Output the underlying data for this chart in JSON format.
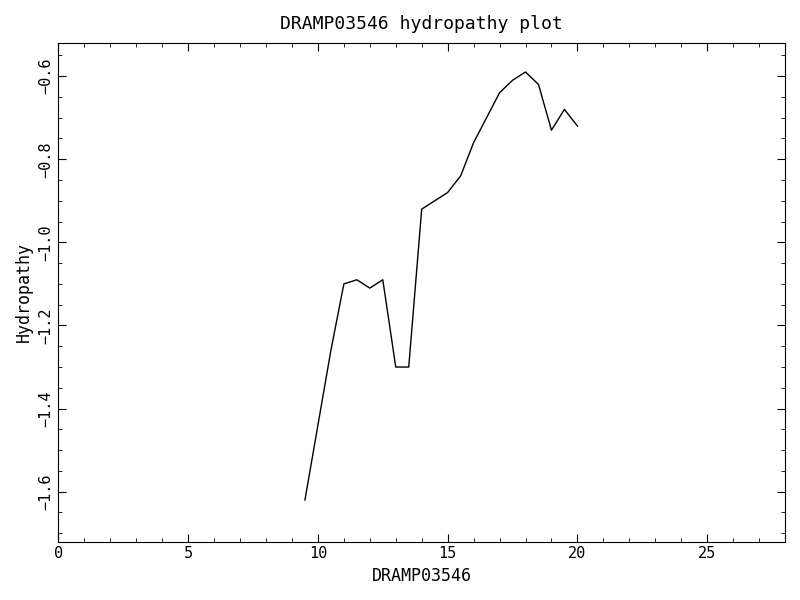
{
  "title": "DRAMP03546 hydropathy plot",
  "xlabel": "DRAMP03546",
  "ylabel": "Hydropathy",
  "xlim": [
    0,
    28
  ],
  "ylim": [
    -1.72,
    -0.52
  ],
  "x_ticks": [
    0,
    5,
    10,
    15,
    20,
    25
  ],
  "y_ticks": [
    -1.6,
    -1.4,
    -1.2,
    -1.0,
    -0.8,
    -0.6
  ],
  "x": [
    9.5,
    10.0,
    10.5,
    11.0,
    11.5,
    12.0,
    12.5,
    13.0,
    13.5,
    14.0,
    14.5,
    15.0,
    15.5,
    16.0,
    16.5,
    17.0,
    17.5,
    18.0,
    18.5,
    19.0,
    19.5,
    20.0
  ],
  "y": [
    -1.62,
    -1.44,
    -1.26,
    -1.1,
    -1.09,
    -1.11,
    -1.09,
    -1.3,
    -1.3,
    -0.92,
    -0.9,
    -0.88,
    -0.84,
    -0.76,
    -0.7,
    -0.64,
    -0.61,
    -0.59,
    -0.62,
    -0.73,
    -0.68,
    -0.72
  ],
  "line_color": "#000000",
  "line_width": 1.0,
  "background_color": "#ffffff",
  "font_family": "monospace",
  "title_fontsize": 13,
  "label_fontsize": 12,
  "tick_fontsize": 11,
  "ytick_rotation": 90
}
